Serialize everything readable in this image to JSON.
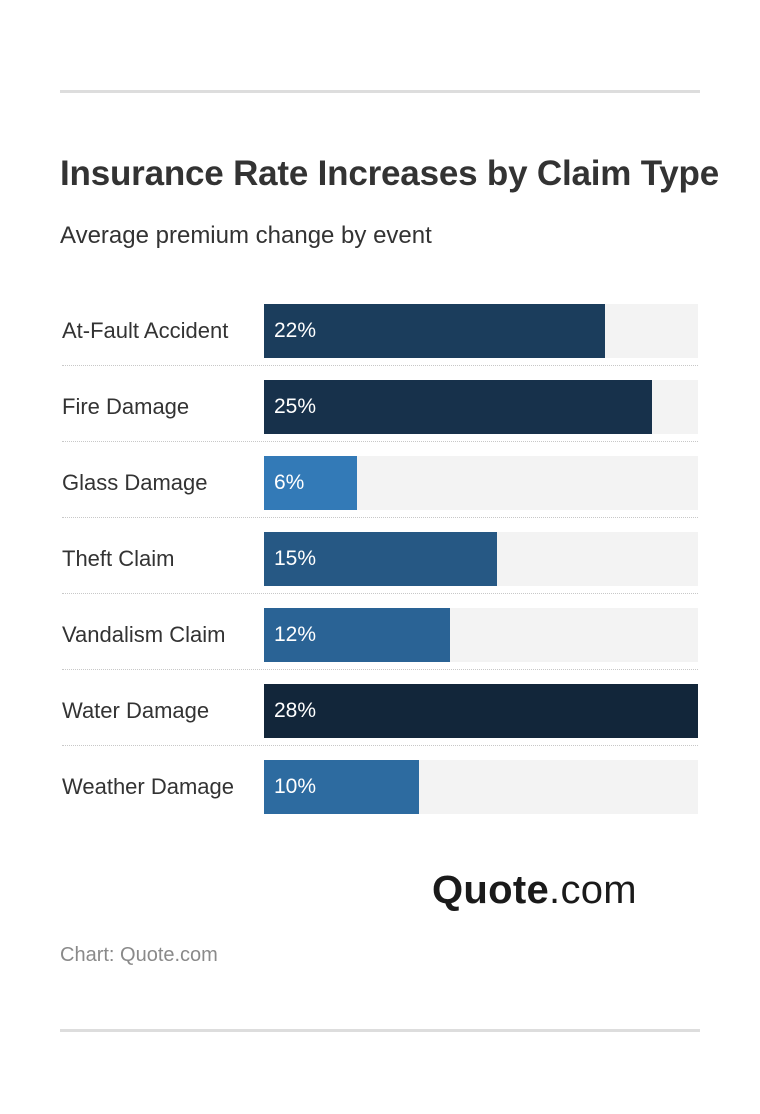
{
  "title": "Insurance Rate Increases by Claim Type",
  "subtitle": "Average premium change by event",
  "source": "Chart: Quote.com",
  "logo": {
    "bold": "Quote",
    "light": ".com"
  },
  "colors": {
    "track": "#f3f3f3",
    "bar_light": "#337ab7",
    "bar_dark": "#12263a"
  },
  "chart_data": {
    "type": "bar",
    "orientation": "horizontal",
    "categories": [
      "At-Fault Accident",
      "Fire Damage",
      "Glass Damage",
      "Theft Claim",
      "Vandalism Claim",
      "Water Damage",
      "Weather Damage"
    ],
    "values": [
      22,
      25,
      6,
      15,
      12,
      28,
      10
    ],
    "value_labels": [
      "22%",
      "25%",
      "6%",
      "15%",
      "12%",
      "28%",
      "10%"
    ],
    "xlim": [
      0,
      28
    ],
    "unit": "%",
    "grid": false,
    "legend": "none"
  }
}
